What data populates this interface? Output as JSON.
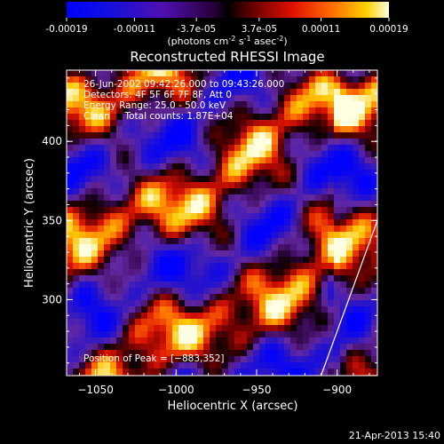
{
  "colorbar": {
    "ticks": [
      "-0.00019",
      "-0.00011",
      "-3.7e-05",
      "3.7e-05",
      "0.00011",
      "0.00019"
    ],
    "tick_values": [
      -0.00019,
      -0.00011,
      -3.7e-05,
      3.7e-05,
      0.00011,
      0.00019
    ],
    "range": [
      -0.00019,
      0.00019
    ],
    "units_main": "(photons cm",
    "units_sup1": "-2",
    "units_mid1": " s",
    "units_sup2": "-1",
    "units_mid2": " asec",
    "units_sup3": "-2",
    "units_end": ")"
  },
  "chart_data": {
    "type": "heatmap",
    "title": "Reconstructed RHESSI Image",
    "xlabel": "Heliocentric X (arcsec)",
    "ylabel": "Heliocentric Y (arcsec)",
    "xlim": [
      -1068,
      -875
    ],
    "ylim": [
      252,
      445
    ],
    "x_ticks": [
      -1050,
      -1000,
      -950,
      -900
    ],
    "y_ticks": [
      300,
      350,
      400
    ],
    "x_tick_labels": [
      "−1050",
      "−1000",
      "−950",
      "−900"
    ],
    "y_tick_labels": [
      "300",
      "350",
      "400"
    ],
    "info_lines": [
      "26-Jun-2002 09:42:26.000 to 09:43:26.000",
      "Detectors: 4F 5F 6F 7F 8F, Att 0",
      "Energy Range: 25.0 - 50.0 keV",
      "Clean     Total counts: 1.87E+04"
    ],
    "peak_label": "Position of Peak = [−883,352]",
    "peak": [
      -883,
      352
    ],
    "limb_line": [
      [
        -910,
        252
      ],
      [
        -875,
        350
      ]
    ],
    "colors": {
      "negative": "#0000ff",
      "mid": "#2a0050",
      "positive": "#ff3000",
      "max": "#ffffe0"
    }
  },
  "timestamp": "21-Apr-2013 15:40"
}
